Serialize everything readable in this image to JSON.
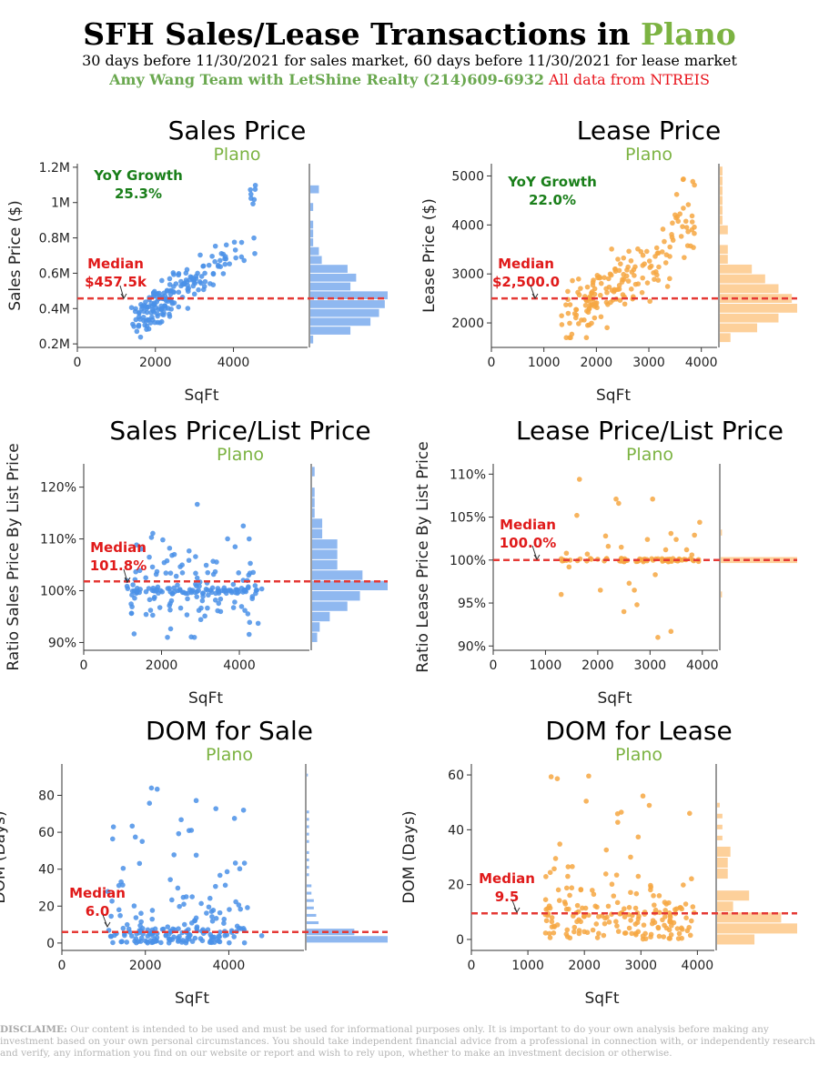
{
  "header": {
    "title_prefix": "SFH Sales/Lease Transactions in ",
    "title_city": "Plano",
    "subtitle": "30 days before 11/30/2021 for sales market, 60 days before 11/30/2021 for lease market",
    "team": "Amy Wang Team with LetShine Realty (214)609-6932",
    "source": " All data from NTREIS"
  },
  "disclaimer": {
    "label": "DISCLAIME:",
    "text": " Our content is intended to be used and must be used for informational purposes only. It is important to do your own analysis before making any investment based on your own personal circumstances. You should take independent financial advice from a professional in connection with, or independently research and verify, any information you find on our website or report and wish to rely upon, whether to make an investment decision or otherwise."
  },
  "colors": {
    "sales": "#4a90e8",
    "sales_hist": "#8fb8f0",
    "lease": "#f6a742",
    "lease_hist": "#fdd09a",
    "median_line": "#e53935",
    "median_text": "#e01a1a",
    "yoy_text": "#1a7f1a",
    "city_text": "#7cb342"
  },
  "chart_data": [
    {
      "id": "sales-price",
      "type": "scatter",
      "color": "sales",
      "title": "Sales Price",
      "subtitle": "Plano",
      "xlabel": "SqFt",
      "ylabel": "Sales Price ($)",
      "xlim": [
        0,
        5900
      ],
      "ylim": [
        180000,
        1220000
      ],
      "xticks": [
        {
          "v": 0,
          "label": "0"
        },
        {
          "v": 2000,
          "label": "2000"
        },
        {
          "v": 4000,
          "label": "4000"
        }
      ],
      "yticks": [
        {
          "v": 200000,
          "label": "0.2M"
        },
        {
          "v": 400000,
          "label": "0.4M"
        },
        {
          "v": 600000,
          "label": "0.6M"
        },
        {
          "v": 800000,
          "label": "0.8M"
        },
        {
          "v": 1000000,
          "label": "1M"
        },
        {
          "v": 1200000,
          "label": "1.2M"
        }
      ],
      "median": 457500,
      "median_label": [
        "Median",
        "$457.5k"
      ],
      "yoy_label": [
        "YoY Growth",
        "25.3%"
      ],
      "hist": [
        {
          "lo": 1050000,
          "hi": 1100000,
          "count": 3
        },
        {
          "lo": 1000000,
          "hi": 1050000,
          "count": 0
        },
        {
          "lo": 950000,
          "hi": 1000000,
          "count": 1
        },
        {
          "lo": 850000,
          "hi": 900000,
          "count": 1
        },
        {
          "lo": 800000,
          "hi": 850000,
          "count": 1
        },
        {
          "lo": 750000,
          "hi": 800000,
          "count": 1
        },
        {
          "lo": 700000,
          "hi": 750000,
          "count": 3
        },
        {
          "lo": 650000,
          "hi": 700000,
          "count": 4
        },
        {
          "lo": 600000,
          "hi": 650000,
          "count": 13
        },
        {
          "lo": 550000,
          "hi": 600000,
          "count": 16
        },
        {
          "lo": 500000,
          "hi": 550000,
          "count": 14
        },
        {
          "lo": 450000,
          "hi": 500000,
          "count": 27
        },
        {
          "lo": 400000,
          "hi": 450000,
          "count": 26
        },
        {
          "lo": 350000,
          "hi": 400000,
          "count": 24
        },
        {
          "lo": 300000,
          "hi": 350000,
          "count": 21
        },
        {
          "lo": 250000,
          "hi": 300000,
          "count": 14
        },
        {
          "lo": 200000,
          "hi": 250000,
          "count": 1
        }
      ]
    },
    {
      "id": "lease-price",
      "type": "scatter",
      "color": "lease",
      "title": "Lease Price",
      "subtitle": "Plano",
      "xlabel": "SqFt",
      "ylabel": "Lease Price ($)",
      "xlim": [
        0,
        4300
      ],
      "ylim": [
        1500,
        5250
      ],
      "xticks": [
        {
          "v": 0,
          "label": "0"
        },
        {
          "v": 1000,
          "label": "1000"
        },
        {
          "v": 2000,
          "label": "2000"
        },
        {
          "v": 3000,
          "label": "3000"
        },
        {
          "v": 4000,
          "label": "4000"
        }
      ],
      "yticks": [
        {
          "v": 2000,
          "label": "2000"
        },
        {
          "v": 3000,
          "label": "3000"
        },
        {
          "v": 4000,
          "label": "4000"
        },
        {
          "v": 5000,
          "label": "5000"
        }
      ],
      "median": 2500,
      "median_label": [
        "Median",
        "$2,500.0"
      ],
      "yoy_label": [
        "YoY Growth",
        "22.0%"
      ],
      "hist": [
        {
          "lo": 5000,
          "hi": 5200,
          "count": 1
        },
        {
          "lo": 4800,
          "hi": 5000,
          "count": 1
        },
        {
          "lo": 4600,
          "hi": 4800,
          "count": 1
        },
        {
          "lo": 4400,
          "hi": 4600,
          "count": 1
        },
        {
          "lo": 4200,
          "hi": 4400,
          "count": 1
        },
        {
          "lo": 4000,
          "hi": 4200,
          "count": 1
        },
        {
          "lo": 3800,
          "hi": 4000,
          "count": 3
        },
        {
          "lo": 3400,
          "hi": 3600,
          "count": 3
        },
        {
          "lo": 3200,
          "hi": 3400,
          "count": 3
        },
        {
          "lo": 3000,
          "hi": 3200,
          "count": 12
        },
        {
          "lo": 2800,
          "hi": 3000,
          "count": 17
        },
        {
          "lo": 2600,
          "hi": 2800,
          "count": 22
        },
        {
          "lo": 2400,
          "hi": 2600,
          "count": 27
        },
        {
          "lo": 2200,
          "hi": 2400,
          "count": 29
        },
        {
          "lo": 2000,
          "hi": 2200,
          "count": 22
        },
        {
          "lo": 1800,
          "hi": 2000,
          "count": 14
        },
        {
          "lo": 1600,
          "hi": 1800,
          "count": 4
        }
      ]
    },
    {
      "id": "sales-ratio",
      "type": "scatter",
      "color": "sales",
      "title": "Sales Price/List Price",
      "subtitle": "Plano",
      "xlabel": "SqFt",
      "ylabel": "Ratio Sales Price By List Price",
      "xlim": [
        0,
        5800
      ],
      "ylim": [
        88.5,
        124.5
      ],
      "xticks": [
        {
          "v": 0,
          "label": "0"
        },
        {
          "v": 2000,
          "label": "2000"
        },
        {
          "v": 4000,
          "label": "4000"
        }
      ],
      "yticks": [
        {
          "v": 90,
          "label": "90%"
        },
        {
          "v": 100,
          "label": "100%"
        },
        {
          "v": 110,
          "label": "110%"
        },
        {
          "v": 120,
          "label": "120%"
        }
      ],
      "median": 101.8,
      "median_label": [
        "Median",
        "101.8%"
      ],
      "hist": [
        {
          "lo": 122,
          "hi": 124,
          "count": 1
        },
        {
          "lo": 120,
          "hi": 122,
          "count": 0
        },
        {
          "lo": 118,
          "hi": 120,
          "count": 1
        },
        {
          "lo": 116,
          "hi": 118,
          "count": 1
        },
        {
          "lo": 114,
          "hi": 116,
          "count": 1
        },
        {
          "lo": 112,
          "hi": 114,
          "count": 4
        },
        {
          "lo": 110,
          "hi": 112,
          "count": 4
        },
        {
          "lo": 108,
          "hi": 110,
          "count": 10
        },
        {
          "lo": 106,
          "hi": 108,
          "count": 10
        },
        {
          "lo": 104,
          "hi": 106,
          "count": 10
        },
        {
          "lo": 102,
          "hi": 104,
          "count": 20
        },
        {
          "lo": 100,
          "hi": 102,
          "count": 30
        },
        {
          "lo": 98,
          "hi": 100,
          "count": 19
        },
        {
          "lo": 96,
          "hi": 98,
          "count": 14
        },
        {
          "lo": 94,
          "hi": 96,
          "count": 7
        },
        {
          "lo": 92,
          "hi": 94,
          "count": 3
        },
        {
          "lo": 90,
          "hi": 92,
          "count": 2
        }
      ]
    },
    {
      "id": "lease-ratio",
      "type": "scatter",
      "color": "lease",
      "title": "Lease Price/List Price",
      "subtitle": "Plano",
      "xlabel": "SqFt",
      "ylabel": "Ratio Lease Price By List Price",
      "xlim": [
        0,
        4300
      ],
      "ylim": [
        89.5,
        111.2
      ],
      "xticks": [
        {
          "v": 0,
          "label": "0"
        },
        {
          "v": 1000,
          "label": "1000"
        },
        {
          "v": 2000,
          "label": "2000"
        },
        {
          "v": 3000,
          "label": "3000"
        },
        {
          "v": 4000,
          "label": "4000"
        }
      ],
      "yticks": [
        {
          "v": 90,
          "label": "90%"
        },
        {
          "v": 95,
          "label": "95%"
        },
        {
          "v": 100,
          "label": "100%"
        },
        {
          "v": 105,
          "label": "105%"
        },
        {
          "v": 110,
          "label": "110%"
        }
      ],
      "median": 100.0,
      "median_label": [
        "Median",
        "100.0%"
      ],
      "hist": [
        {
          "lo": 102.8,
          "hi": 103.6,
          "count": 1
        },
        {
          "lo": 99.6,
          "hi": 100.4,
          "count": 60
        },
        {
          "lo": 95.6,
          "hi": 96.4,
          "count": 1
        }
      ]
    },
    {
      "id": "dom-sale",
      "type": "scatter",
      "color": "sales",
      "title": "DOM for Sale",
      "subtitle": "Plano",
      "xlabel": "SqFt",
      "ylabel": "DOM (Days)",
      "xlim": [
        0,
        5800
      ],
      "ylim": [
        -4,
        97
      ],
      "xticks": [
        {
          "v": 0,
          "label": "0"
        },
        {
          "v": 2000,
          "label": "2000"
        },
        {
          "v": 4000,
          "label": "4000"
        }
      ],
      "yticks": [
        {
          "v": 0,
          "label": "0"
        },
        {
          "v": 20,
          "label": "20"
        },
        {
          "v": 40,
          "label": "40"
        },
        {
          "v": 60,
          "label": "60"
        },
        {
          "v": 80,
          "label": "80"
        }
      ],
      "median": 6.0,
      "median_label": [
        "Median",
        "6.0"
      ],
      "hist": [
        {
          "lo": 90,
          "hi": 92,
          "count": 0.5
        },
        {
          "lo": 70,
          "hi": 72,
          "count": 1
        },
        {
          "lo": 66,
          "hi": 68,
          "count": 1
        },
        {
          "lo": 62,
          "hi": 64,
          "count": 1
        },
        {
          "lo": 58,
          "hi": 60,
          "count": 1
        },
        {
          "lo": 54,
          "hi": 56,
          "count": 1
        },
        {
          "lo": 48,
          "hi": 50,
          "count": 1
        },
        {
          "lo": 44,
          "hi": 46,
          "count": 1
        },
        {
          "lo": 40,
          "hi": 42,
          "count": 1
        },
        {
          "lo": 36,
          "hi": 38,
          "count": 1
        },
        {
          "lo": 30,
          "hi": 32,
          "count": 2
        },
        {
          "lo": 26,
          "hi": 28,
          "count": 2
        },
        {
          "lo": 22,
          "hi": 24,
          "count": 3
        },
        {
          "lo": 18,
          "hi": 20,
          "count": 3
        },
        {
          "lo": 14,
          "hi": 16,
          "count": 4
        },
        {
          "lo": 10,
          "hi": 12,
          "count": 5
        },
        {
          "lo": 4,
          "hi": 8,
          "count": 20
        },
        {
          "lo": 0,
          "hi": 4,
          "count": 34
        }
      ]
    },
    {
      "id": "dom-lease",
      "type": "scatter",
      "color": "lease",
      "title": "DOM for Lease",
      "subtitle": "Plano",
      "xlabel": "SqFt",
      "ylabel": "DOM (Days)",
      "xlim": [
        0,
        4300
      ],
      "ylim": [
        -4,
        64
      ],
      "xticks": [
        {
          "v": 0,
          "label": "0"
        },
        {
          "v": 1000,
          "label": "1000"
        },
        {
          "v": 2000,
          "label": "2000"
        },
        {
          "v": 3000,
          "label": "3000"
        },
        {
          "v": 4000,
          "label": "4000"
        }
      ],
      "yticks": [
        {
          "v": 0,
          "label": "0"
        },
        {
          "v": 20,
          "label": "20"
        },
        {
          "v": 40,
          "label": "40"
        },
        {
          "v": 60,
          "label": "60"
        }
      ],
      "median": 9.5,
      "median_label": [
        "Median",
        "9.5"
      ],
      "hist": [
        {
          "lo": 48,
          "hi": 50,
          "count": 1
        },
        {
          "lo": 44,
          "hi": 46,
          "count": 2
        },
        {
          "lo": 40,
          "hi": 42,
          "count": 2
        },
        {
          "lo": 36,
          "hi": 38,
          "count": 2
        },
        {
          "lo": 30,
          "hi": 34,
          "count": 5
        },
        {
          "lo": 26,
          "hi": 30,
          "count": 4
        },
        {
          "lo": 22,
          "hi": 26,
          "count": 4
        },
        {
          "lo": 14,
          "hi": 18,
          "count": 12
        },
        {
          "lo": 10,
          "hi": 14,
          "count": 6
        },
        {
          "lo": 6,
          "hi": 10,
          "count": 24
        },
        {
          "lo": 2,
          "hi": 6,
          "count": 30
        },
        {
          "lo": -2,
          "hi": 2,
          "count": 14
        }
      ]
    }
  ]
}
